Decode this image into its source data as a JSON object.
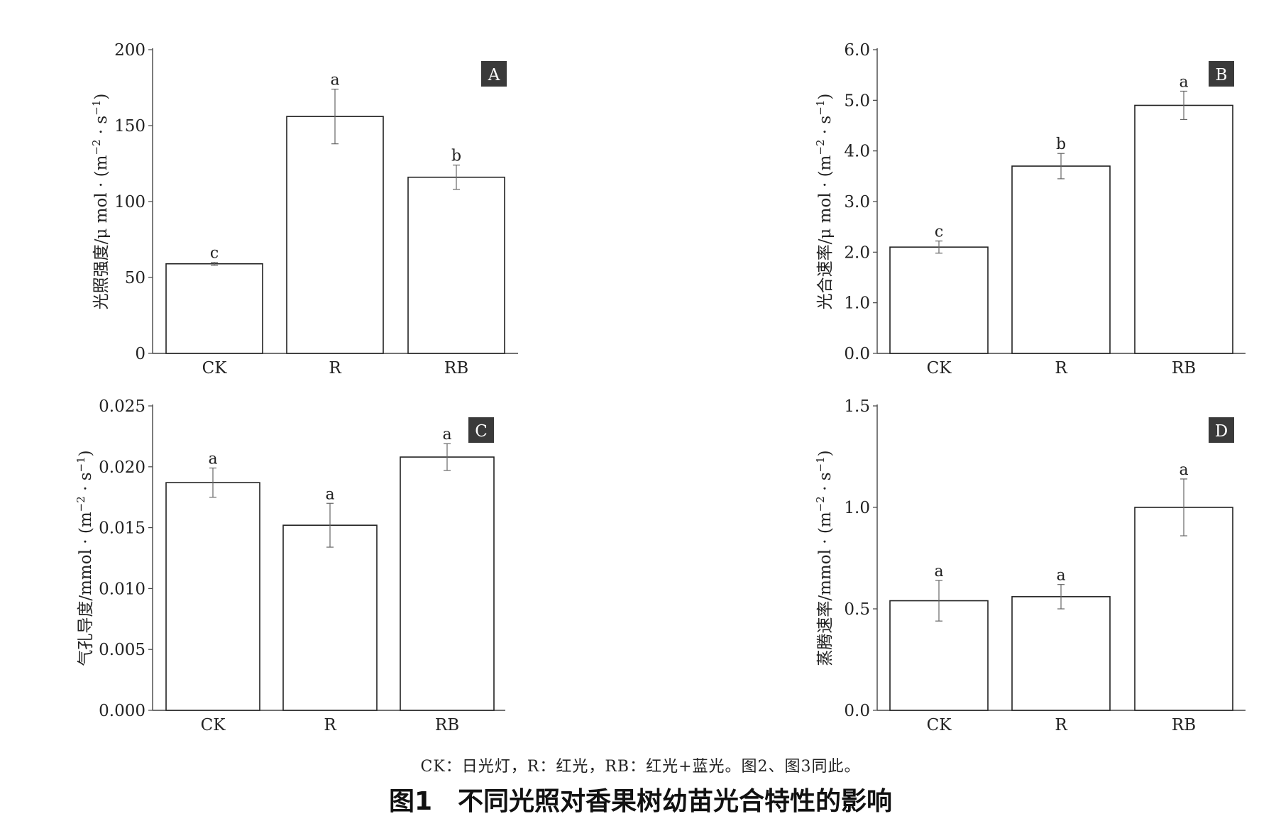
{
  "figure": {
    "note": "CK：日光灯，R：红光，RB：红光+蓝光。图2、图3同此。",
    "caption_number": "图1",
    "caption_title": "不同光照对香果树幼苗光合特性的影响"
  },
  "chart_data": [
    {
      "type": "bar",
      "panel": "A",
      "categories": [
        "CK",
        "R",
        "RB"
      ],
      "values": [
        59,
        156,
        116
      ],
      "errors": [
        1,
        18,
        8
      ],
      "significance": [
        "c",
        "a",
        "b"
      ],
      "ylabel_main": "光照强度/μ mol · (m",
      "ylabel_sup1": "−2",
      "ylabel_mid": " · s",
      "ylabel_sup2": "−1",
      "ylabel_end": ")",
      "ylim": [
        0,
        200
      ],
      "yticks": [
        "0",
        "50",
        "100",
        "150",
        "200"
      ],
      "ytick_values": [
        0,
        50,
        100,
        150,
        200
      ]
    },
    {
      "type": "bar",
      "panel": "B",
      "categories": [
        "CK",
        "R",
        "RB"
      ],
      "values": [
        2.1,
        3.7,
        4.9
      ],
      "errors": [
        0.12,
        0.25,
        0.28
      ],
      "significance": [
        "c",
        "b",
        "a"
      ],
      "ylabel_main": "光合速率/μ mol · (m",
      "ylabel_sup1": "−2",
      "ylabel_mid": " · s",
      "ylabel_sup2": "−1",
      "ylabel_end": ")",
      "ylim": [
        0,
        6
      ],
      "yticks": [
        "0.0",
        "1.0",
        "2.0",
        "3.0",
        "4.0",
        "5.0",
        "6.0"
      ],
      "ytick_values": [
        0,
        1,
        2,
        3,
        4,
        5,
        6
      ]
    },
    {
      "type": "bar",
      "panel": "C",
      "categories": [
        "CK",
        "R",
        "RB"
      ],
      "values": [
        0.0187,
        0.0152,
        0.0208
      ],
      "errors": [
        0.0012,
        0.0018,
        0.0011
      ],
      "significance": [
        "a",
        "a",
        "a"
      ],
      "ylabel_main": "气孔导度/mmol · (m",
      "ylabel_sup1": "−2",
      "ylabel_mid": " · s",
      "ylabel_sup2": "−1",
      "ylabel_end": ")",
      "ylim": [
        0,
        0.025
      ],
      "yticks": [
        "0.000",
        "0.005",
        "0.010",
        "0.015",
        "0.020",
        "0.025"
      ],
      "ytick_values": [
        0,
        0.005,
        0.01,
        0.015,
        0.02,
        0.025
      ]
    },
    {
      "type": "bar",
      "panel": "D",
      "categories": [
        "CK",
        "R",
        "RB"
      ],
      "values": [
        0.54,
        0.56,
        1.0
      ],
      "errors": [
        0.1,
        0.06,
        0.14
      ],
      "significance": [
        "a",
        "a",
        "a"
      ],
      "ylabel_main": "蒸腾速率/mmol · (m",
      "ylabel_sup1": "−2",
      "ylabel_mid": " · s",
      "ylabel_sup2": "−1",
      "ylabel_end": ")",
      "ylim": [
        0,
        1.5
      ],
      "yticks": [
        "0.0",
        "0.5",
        "1.0",
        "1.5"
      ],
      "ytick_values": [
        0,
        0.5,
        1.0,
        1.5
      ]
    }
  ]
}
